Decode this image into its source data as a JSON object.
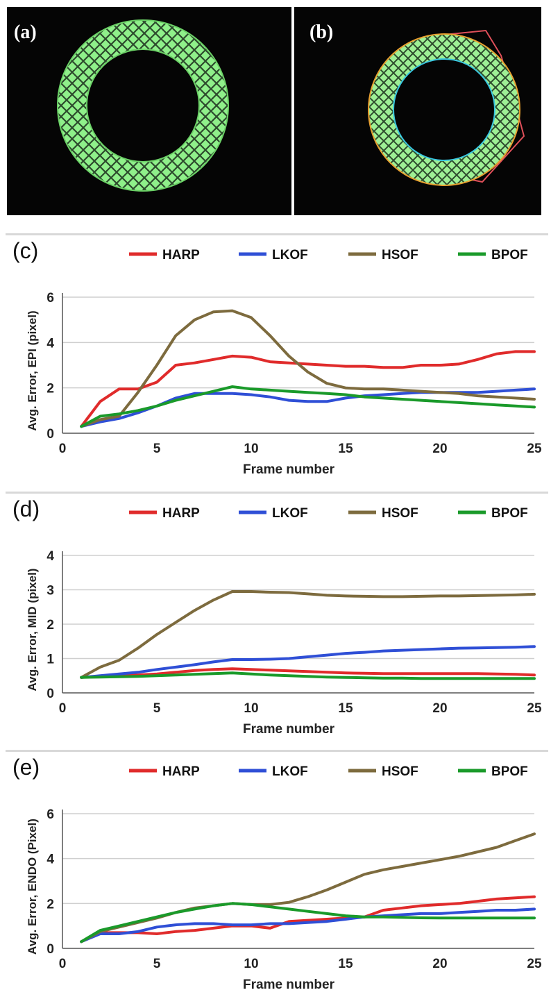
{
  "panels": {
    "a": {
      "label": "(a)"
    },
    "b": {
      "label": "(b)"
    }
  },
  "colors": {
    "HARP": "#e02b2b",
    "LKOF": "#2f4fd6",
    "HSOF": "#7d6b3e",
    "BPOF": "#1a9a2a",
    "ring_green": "#8ff08a",
    "ring_mesh": "#2d4a2d",
    "overlay_red": "#e0505a",
    "overlay_cyan": "#39c7e0",
    "overlay_orange": "#e8a030"
  },
  "chart_data": [
    {
      "type": "line",
      "panel_label": "(c)",
      "xlabel": "Frame number",
      "ylabel": "Avg. Error, EPI (pixel)",
      "xlim": [
        0,
        25
      ],
      "ylim": [
        0,
        6
      ],
      "xticks": [
        0,
        5,
        10,
        15,
        20,
        25
      ],
      "yticks": [
        0,
        2,
        4,
        6
      ],
      "grid": true,
      "legend": "top",
      "x": [
        1,
        2,
        3,
        4,
        5,
        6,
        7,
        8,
        9,
        10,
        11,
        12,
        13,
        14,
        15,
        16,
        17,
        18,
        19,
        20,
        21,
        22,
        23,
        24,
        25
      ],
      "series": [
        {
          "name": "HARP",
          "values": [
            0.3,
            1.4,
            1.95,
            1.95,
            2.25,
            3.0,
            3.1,
            3.25,
            3.4,
            3.35,
            3.15,
            3.1,
            3.05,
            3.0,
            2.95,
            2.95,
            2.9,
            2.9,
            3.0,
            3.0,
            3.05,
            3.25,
            3.5,
            3.6,
            3.6
          ]
        },
        {
          "name": "LKOF",
          "values": [
            0.3,
            0.5,
            0.65,
            0.9,
            1.2,
            1.55,
            1.75,
            1.75,
            1.75,
            1.7,
            1.6,
            1.45,
            1.4,
            1.4,
            1.55,
            1.65,
            1.7,
            1.75,
            1.8,
            1.8,
            1.8,
            1.8,
            1.85,
            1.9,
            1.95
          ]
        },
        {
          "name": "HSOF",
          "values": [
            0.3,
            0.6,
            0.75,
            1.8,
            3.0,
            4.3,
            5.0,
            5.35,
            5.4,
            5.1,
            4.3,
            3.4,
            2.7,
            2.2,
            2.0,
            1.95,
            1.95,
            1.9,
            1.85,
            1.8,
            1.75,
            1.65,
            1.6,
            1.55,
            1.5
          ]
        },
        {
          "name": "BPOF",
          "values": [
            0.3,
            0.75,
            0.85,
            1.0,
            1.2,
            1.45,
            1.65,
            1.85,
            2.05,
            1.95,
            1.9,
            1.85,
            1.8,
            1.75,
            1.7,
            1.6,
            1.55,
            1.5,
            1.45,
            1.4,
            1.35,
            1.3,
            1.25,
            1.2,
            1.15
          ]
        }
      ]
    },
    {
      "type": "line",
      "panel_label": "(d)",
      "xlabel": "Frame number",
      "ylabel": "Avg. Error, MID (pixel)",
      "xlim": [
        0,
        25
      ],
      "ylim": [
        0,
        4
      ],
      "xticks": [
        0,
        5,
        10,
        15,
        20,
        25
      ],
      "yticks": [
        0,
        1,
        2,
        3,
        4
      ],
      "grid": true,
      "legend": "top",
      "x": [
        1,
        2,
        3,
        4,
        5,
        6,
        7,
        8,
        9,
        10,
        11,
        12,
        13,
        14,
        15,
        16,
        17,
        18,
        19,
        20,
        21,
        22,
        23,
        24,
        25
      ],
      "series": [
        {
          "name": "HARP",
          "values": [
            0.45,
            0.48,
            0.5,
            0.52,
            0.55,
            0.6,
            0.65,
            0.68,
            0.7,
            0.68,
            0.66,
            0.64,
            0.62,
            0.6,
            0.58,
            0.57,
            0.56,
            0.56,
            0.56,
            0.56,
            0.56,
            0.56,
            0.55,
            0.54,
            0.52
          ]
        },
        {
          "name": "LKOF",
          "values": [
            0.45,
            0.5,
            0.55,
            0.6,
            0.68,
            0.75,
            0.82,
            0.9,
            0.97,
            0.97,
            0.98,
            1.0,
            1.05,
            1.1,
            1.15,
            1.18,
            1.22,
            1.24,
            1.26,
            1.28,
            1.3,
            1.31,
            1.32,
            1.33,
            1.35
          ]
        },
        {
          "name": "HSOF",
          "values": [
            0.45,
            0.75,
            0.95,
            1.3,
            1.7,
            2.05,
            2.4,
            2.7,
            2.95,
            2.95,
            2.93,
            2.92,
            2.88,
            2.84,
            2.82,
            2.81,
            2.8,
            2.8,
            2.81,
            2.82,
            2.82,
            2.83,
            2.84,
            2.85,
            2.87
          ]
        },
        {
          "name": "BPOF",
          "values": [
            0.45,
            0.46,
            0.47,
            0.48,
            0.5,
            0.52,
            0.54,
            0.56,
            0.58,
            0.55,
            0.52,
            0.5,
            0.48,
            0.46,
            0.45,
            0.44,
            0.43,
            0.43,
            0.42,
            0.42,
            0.42,
            0.42,
            0.42,
            0.42,
            0.42
          ]
        }
      ]
    },
    {
      "type": "line",
      "panel_label": "(e)",
      "xlabel": "Frame number",
      "ylabel": "Avg. Error, ENDO (Pixel)",
      "xlim": [
        0,
        25
      ],
      "ylim": [
        0,
        6
      ],
      "xticks": [
        0,
        5,
        10,
        15,
        20,
        25
      ],
      "yticks": [
        0,
        2,
        4,
        6
      ],
      "grid": true,
      "legend": "top",
      "x": [
        1,
        2,
        3,
        4,
        5,
        6,
        7,
        8,
        9,
        10,
        11,
        12,
        13,
        14,
        15,
        16,
        17,
        18,
        19,
        20,
        21,
        22,
        23,
        24,
        25
      ],
      "series": [
        {
          "name": "HARP",
          "values": [
            0.3,
            0.7,
            0.7,
            0.7,
            0.65,
            0.75,
            0.8,
            0.9,
            1.0,
            1.0,
            0.9,
            1.2,
            1.25,
            1.3,
            1.35,
            1.4,
            1.7,
            1.8,
            1.9,
            1.95,
            2.0,
            2.1,
            2.2,
            2.25,
            2.3
          ]
        },
        {
          "name": "LKOF",
          "values": [
            0.3,
            0.65,
            0.65,
            0.75,
            0.95,
            1.05,
            1.1,
            1.1,
            1.05,
            1.05,
            1.1,
            1.1,
            1.15,
            1.2,
            1.3,
            1.4,
            1.45,
            1.5,
            1.55,
            1.55,
            1.6,
            1.65,
            1.7,
            1.7,
            1.75
          ]
        },
        {
          "name": "HSOF",
          "values": [
            0.3,
            0.75,
            0.95,
            1.15,
            1.35,
            1.6,
            1.8,
            1.9,
            2.0,
            1.95,
            1.95,
            2.05,
            2.3,
            2.6,
            2.95,
            3.3,
            3.5,
            3.65,
            3.8,
            3.95,
            4.1,
            4.3,
            4.5,
            4.8,
            5.1
          ]
        },
        {
          "name": "BPOF",
          "values": [
            0.3,
            0.8,
            1.0,
            1.2,
            1.4,
            1.6,
            1.75,
            1.9,
            2.0,
            1.95,
            1.85,
            1.75,
            1.65,
            1.55,
            1.45,
            1.4,
            1.4,
            1.38,
            1.36,
            1.35,
            1.35,
            1.35,
            1.35,
            1.35,
            1.35
          ]
        }
      ]
    }
  ]
}
